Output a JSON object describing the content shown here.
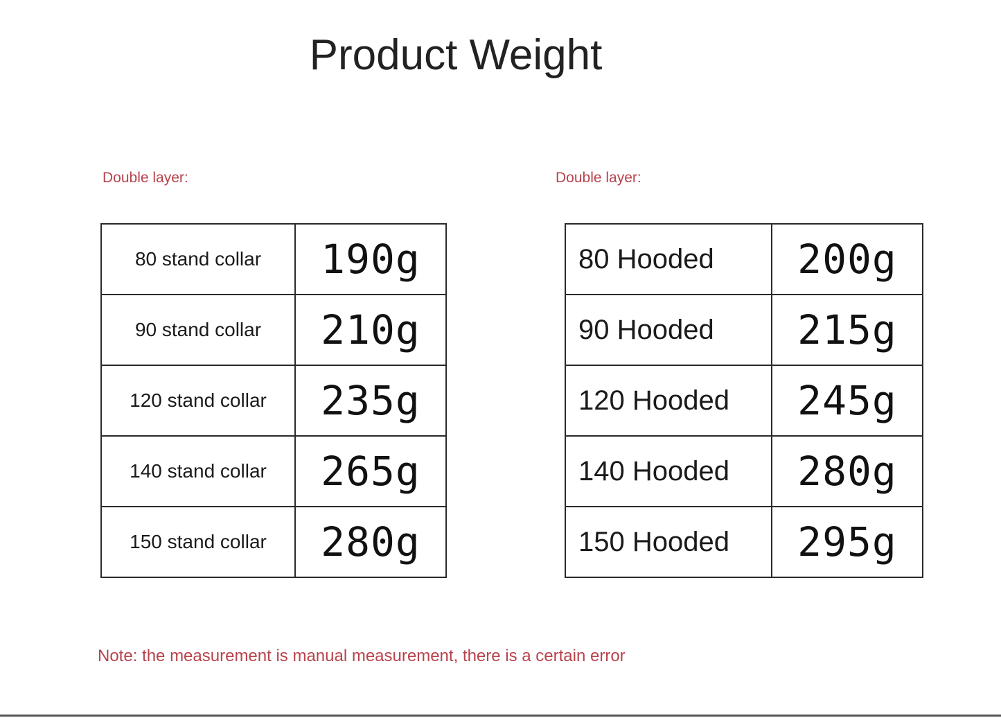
{
  "title": "Product Weight",
  "left_table": {
    "heading": "Double layer:",
    "rows": [
      {
        "label": "80 stand collar",
        "weight": "190g"
      },
      {
        "label": "90 stand collar",
        "weight": "210g"
      },
      {
        "label": "120 stand collar",
        "weight": "235g"
      },
      {
        "label": "140 stand collar",
        "weight": "265g"
      },
      {
        "label": "150 stand collar",
        "weight": "280g"
      }
    ]
  },
  "right_table": {
    "heading": "Double layer:",
    "rows": [
      {
        "label": "80 Hooded",
        "weight": "200g"
      },
      {
        "label": "90 Hooded",
        "weight": "215g"
      },
      {
        "label": "120 Hooded",
        "weight": "245g"
      },
      {
        "label": "140 Hooded",
        "weight": "280g"
      },
      {
        "label": "150 Hooded",
        "weight": "295g"
      }
    ]
  },
  "note": "Note: the measurement is manual measurement, there is a certain error",
  "colors": {
    "accent_red": "#b8434c",
    "text": "#1a1a1a"
  }
}
